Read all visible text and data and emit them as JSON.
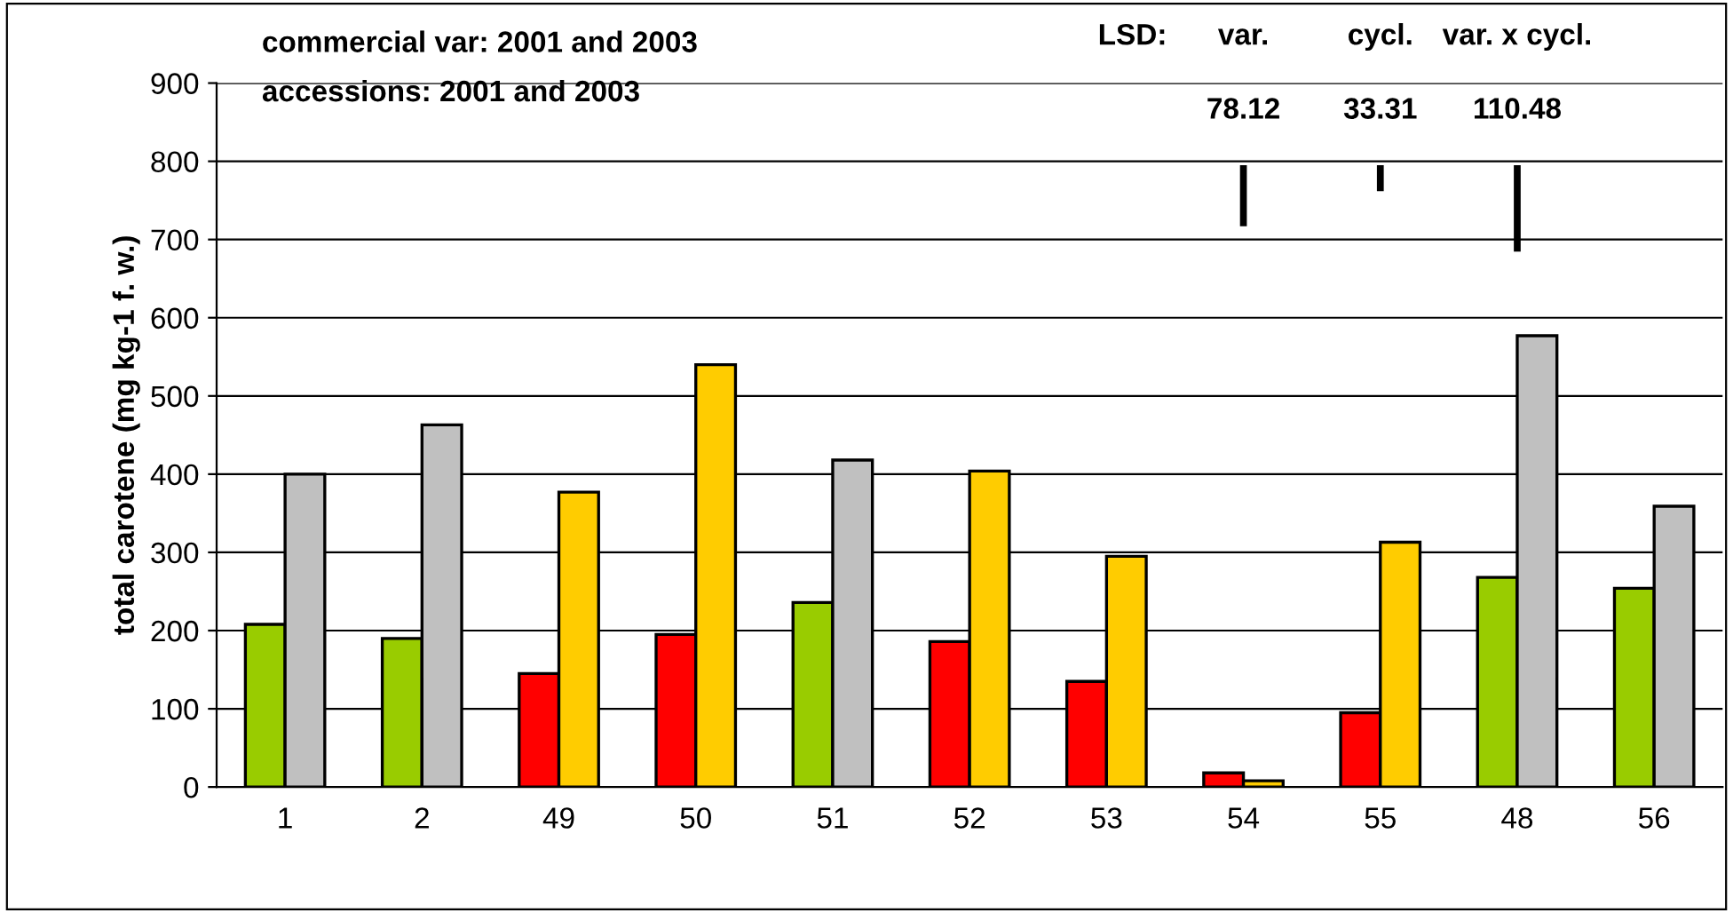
{
  "chart_data": {
    "type": "bar",
    "ylabel": "total carotene (mg kg-1 f. w.)",
    "categories": [
      "1",
      "2",
      "49",
      "50",
      "51",
      "52",
      "53",
      "54",
      "55",
      "48",
      "56"
    ],
    "series": [
      {
        "values": [
          208,
          190,
          145,
          195,
          236,
          186,
          135,
          18,
          95,
          268,
          254
        ],
        "colors": [
          "#99cc00",
          "#99cc00",
          "#ff0000",
          "#ff0000",
          "#99cc00",
          "#ff0000",
          "#ff0000",
          "#ff0000",
          "#ff0000",
          "#99cc00",
          "#99cc00"
        ]
      },
      {
        "values": [
          400,
          463,
          377,
          540,
          418,
          404,
          295,
          8,
          313,
          577,
          359
        ],
        "colors": [
          "#c0c0c0",
          "#c0c0c0",
          "#ffcc00",
          "#ffcc00",
          "#c0c0c0",
          "#ffcc00",
          "#ffcc00",
          "#ffcc00",
          "#ffcc00",
          "#c0c0c0",
          "#c0c0c0"
        ]
      },
      {
        "values": [
          null,
          null,
          null,
          null,
          null,
          null,
          null,
          78.12,
          33.31,
          110.48,
          null
        ],
        "base": [
          null,
          null,
          null,
          null,
          null,
          null,
          null,
          716.88,
          761.69,
          684.52,
          null
        ],
        "color": "#000000"
      }
    ],
    "ylim": [
      0,
      900
    ],
    "yticks": [
      0,
      100,
      200,
      300,
      400,
      500,
      600,
      700,
      800,
      900
    ],
    "grid": "y",
    "legend": false,
    "annotations": [
      "commercial var: 2001 and 2003",
      "accessions: 2001 and 2003",
      "LSD:",
      "var.",
      "cycl.",
      "var. x cycl.",
      "78.12",
      "33.31",
      "110.48"
    ]
  }
}
